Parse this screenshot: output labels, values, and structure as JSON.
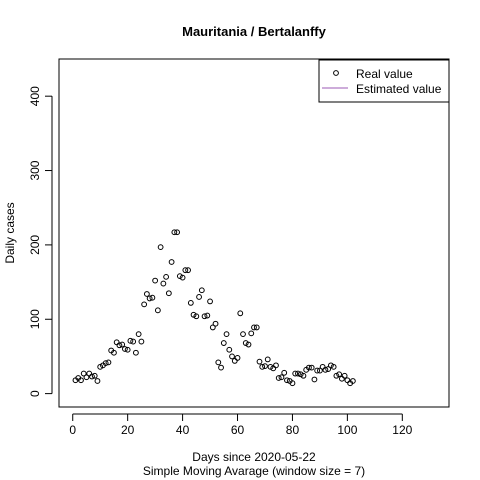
{
  "chart_data": {
    "type": "scatter",
    "title": "Mauritania / Bertalanffy",
    "xlabel": "Days since 2020-05-22",
    "subtitle": "Simple Moving Avarage (window size = 7)",
    "ylabel": "Daily cases",
    "xlim": [
      -5,
      137
    ],
    "ylim": [
      -18,
      450
    ],
    "xticks": [
      0,
      20,
      40,
      60,
      80,
      100,
      120
    ],
    "yticks": [
      0,
      100,
      200,
      300,
      400
    ],
    "grid": false,
    "legend": {
      "placement": "top-right",
      "entries": [
        {
          "label": "Real value",
          "kind": "point"
        },
        {
          "label": "Estimated value",
          "kind": "line",
          "color": "#9b59b6"
        }
      ]
    },
    "series": [
      {
        "name": "Real value",
        "kind": "point",
        "x": [
          1,
          2,
          3,
          4,
          5,
          6,
          7,
          8,
          9,
          10,
          11,
          12,
          13,
          14,
          15,
          16,
          17,
          18,
          19,
          20,
          21,
          22,
          23,
          24,
          25,
          26,
          27,
          28,
          29,
          30,
          31,
          32,
          33,
          34,
          35,
          36,
          37,
          38,
          39,
          40,
          41,
          42,
          43,
          44,
          45,
          46,
          47,
          48,
          49,
          50,
          51,
          52,
          53,
          54,
          55,
          56,
          57,
          58,
          59,
          60,
          61,
          62,
          63,
          64,
          65,
          66,
          67,
          68,
          69,
          70,
          71,
          72,
          73,
          74,
          75,
          76,
          77,
          78,
          79,
          80,
          81,
          82,
          83,
          84,
          85,
          86,
          87,
          88,
          89,
          90,
          91,
          92,
          93,
          94,
          95,
          96,
          97,
          98,
          99,
          100,
          101,
          102
        ],
        "y": [
          18,
          21,
          18,
          27,
          22,
          27,
          23,
          24,
          17,
          36,
          38,
          41,
          42,
          58,
          55,
          69,
          65,
          66,
          60,
          59,
          71,
          70,
          55,
          80,
          70,
          120,
          134,
          128,
          129,
          152,
          112,
          197,
          148,
          157,
          135,
          177,
          217,
          217,
          158,
          156,
          166,
          166,
          122,
          106,
          104,
          130,
          139,
          104,
          105,
          124,
          89,
          94,
          42,
          35,
          68,
          80,
          59,
          50,
          44,
          48,
          108,
          80,
          68,
          66,
          81,
          89,
          89,
          43,
          36,
          37,
          46,
          36,
          34,
          38,
          21,
          22,
          28,
          18,
          17,
          14,
          27,
          27,
          26,
          24,
          32,
          35,
          35,
          19,
          31,
          31,
          36,
          32,
          33,
          38,
          36,
          24,
          26,
          20,
          24,
          18,
          14,
          17
        ]
      },
      {
        "name": "Estimated value",
        "kind": "line",
        "color": "#9b59b6",
        "x": [],
        "y": []
      }
    ]
  }
}
